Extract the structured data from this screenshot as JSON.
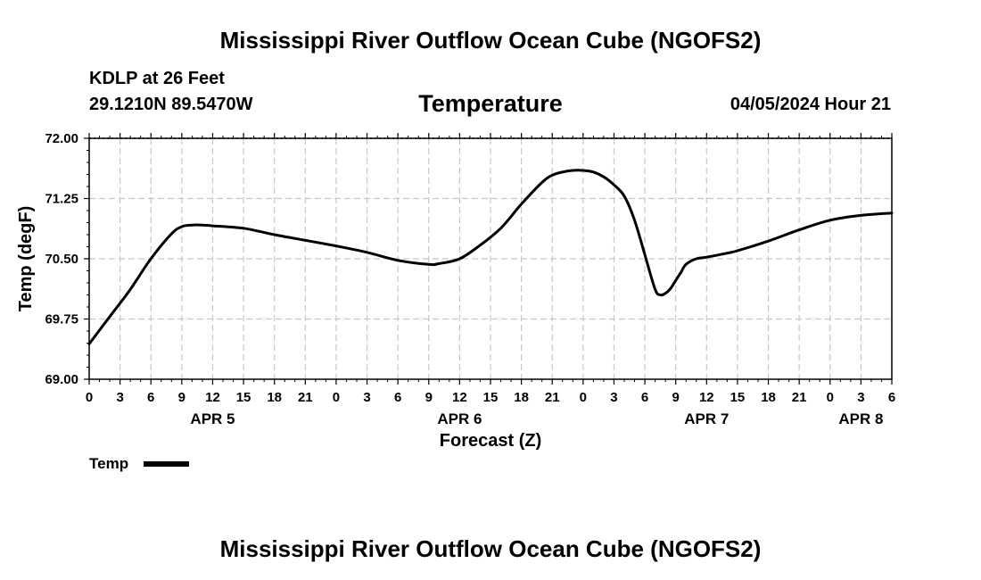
{
  "header": {
    "title": "Mississippi River Outflow Ocean Cube (NGOFS2)",
    "station": "KDLP at 26 Feet",
    "coords": "29.1210N  89.5470W",
    "variable": "Temperature",
    "datetime": "04/05/2024 Hour 21"
  },
  "chart_data": {
    "type": "line",
    "title": "Temperature",
    "xlabel": "Forecast (Z)",
    "ylabel": "Temp (degF)",
    "ylim": [
      69.0,
      72.0
    ],
    "xlim": [
      0,
      78
    ],
    "x_unit": "hours since APR 5 00Z",
    "y_ticks": [
      "72.00",
      "71.25",
      "70.50",
      "69.75",
      "69.00"
    ],
    "x_ticks": [
      "0",
      "3",
      "6",
      "9",
      "12",
      "15",
      "18",
      "21",
      "0",
      "3",
      "6",
      "9",
      "12",
      "15",
      "18",
      "21",
      "0",
      "3",
      "6",
      "9",
      "12",
      "15",
      "18",
      "21",
      "0",
      "3",
      "6"
    ],
    "day_labels": [
      {
        "label": "APR 5",
        "hour": 12
      },
      {
        "label": "APR 6",
        "hour": 36
      },
      {
        "label": "APR 7",
        "hour": 60
      },
      {
        "label": "APR 8",
        "hour": 75
      }
    ],
    "grid": true,
    "series": [
      {
        "name": "Temp",
        "color": "#000000",
        "x": [
          0,
          2,
          4,
          6,
          8,
          9,
          10,
          11,
          12,
          15,
          18,
          21,
          24,
          27,
          30,
          33,
          34,
          36,
          38,
          40,
          42,
          44,
          45,
          46,
          47,
          48,
          49,
          50,
          51,
          52,
          53,
          54,
          55,
          55.5,
          56,
          56.5,
          57,
          57.5,
          58,
          59,
          60,
          62,
          63,
          66,
          69,
          72,
          75,
          78
        ],
        "y": [
          69.44,
          69.78,
          70.12,
          70.5,
          70.81,
          70.9,
          70.92,
          70.92,
          70.91,
          70.88,
          70.8,
          70.73,
          70.66,
          70.58,
          70.48,
          70.43,
          70.44,
          70.5,
          70.67,
          70.88,
          71.18,
          71.45,
          71.54,
          71.58,
          71.6,
          71.6,
          71.58,
          71.52,
          71.42,
          71.28,
          70.98,
          70.55,
          70.12,
          70.05,
          70.07,
          70.13,
          70.23,
          70.33,
          70.43,
          70.5,
          70.52,
          70.57,
          70.6,
          70.72,
          70.86,
          70.98,
          71.04,
          71.07
        ]
      }
    ],
    "legend": {
      "label": "Temp",
      "position": "bottom-left"
    }
  },
  "footer": {
    "title": "Mississippi River Outflow Ocean Cube (NGOFS2)"
  }
}
